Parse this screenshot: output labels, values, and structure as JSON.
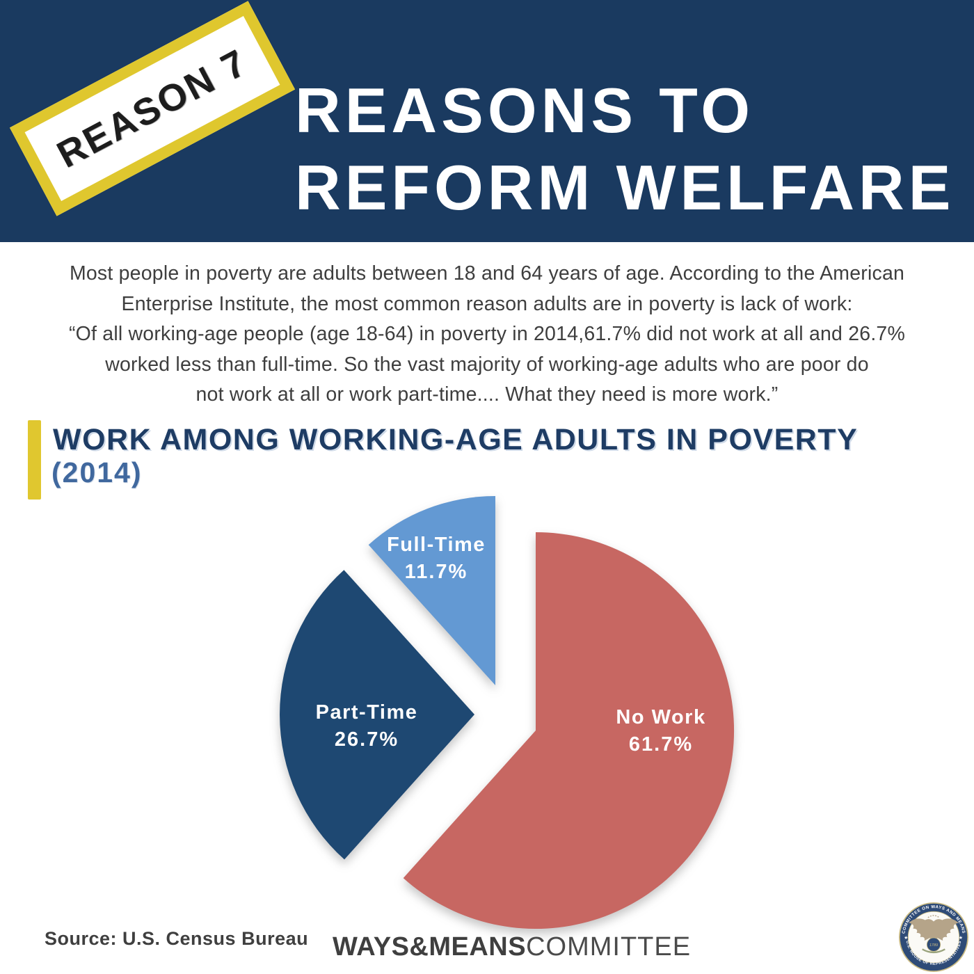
{
  "header": {
    "stamp_text": "REASON 7",
    "title_line1": "REASONS TO",
    "title_line2": "REFORM WELFARE",
    "bg_color": "#1A3A60",
    "stamp_yellow": "#DFC72E"
  },
  "intro": {
    "lines": [
      "Most people in poverty are adults between 18 and 64 years of age. According to the American",
      "Enterprise Institute, the most common reason adults are in poverty is lack of work:",
      "“Of all working-age people (age 18-64) in poverty in 2014,61.7% did not work at all and 26.7%",
      "worked less than full-time. So the vast majority of working-age adults who are poor do",
      "not work at all or work part-time.... What they need is more work.”"
    ]
  },
  "section": {
    "title": "WORK AMONG WORKING-AGE ADULTS IN POVERTY",
    "subtitle": "(2014)",
    "accent_color": "#E0C72F",
    "title_color": "#1E3C64"
  },
  "chart_data": {
    "type": "pie",
    "title": "WORK AMONG WORKING-AGE ADULTS IN POVERTY (2014)",
    "year": "2014",
    "direction": "clockwise",
    "start_angle_deg": 0,
    "exploded": true,
    "labels_inside": true,
    "legend_position": "none",
    "slices": [
      {
        "label": "No Work",
        "value": 61.7,
        "pct_label": "61.7%",
        "color": "#C76762"
      },
      {
        "label": "Part-Time",
        "value": 26.7,
        "pct_label": "26.7%",
        "color": "#1E4872"
      },
      {
        "label": "Full-Time",
        "value": 11.7,
        "pct_label": "11.7%",
        "color": "#6399D3"
      }
    ]
  },
  "footer": {
    "source": "Source: U.S. Census Bureau",
    "brand_bold": "WAYS&MEANS",
    "brand_light": "COMMITTEE",
    "seal": {
      "top_text": "COMMITTEE ON WAYS AND MEANS",
      "bottom_text": "U.S. HOUSE OF REPRESENTATIVES",
      "center_text": "1789"
    }
  }
}
